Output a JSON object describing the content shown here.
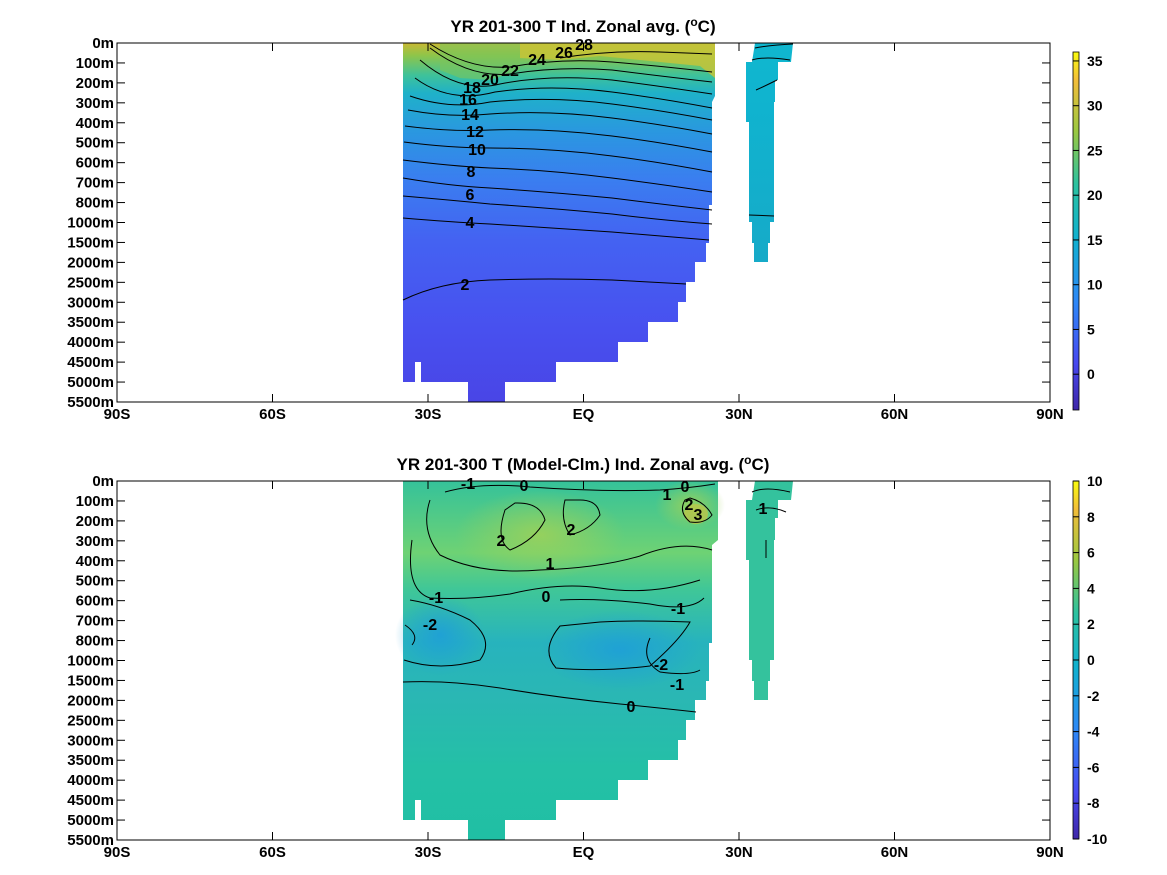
{
  "chart_data": [
    {
      "type": "heatmap",
      "title": "YR 201-300 T Ind. Zonal avg. (°C)",
      "title_main": "YR 201-300 T Ind. Zonal avg. (",
      "title_unit_sup": "o",
      "title_unit_tail": "C)",
      "x_ticks": [
        "90S",
        "60S",
        "30S",
        "EQ",
        "30N",
        "60N",
        "90N"
      ],
      "x_values": [
        -90,
        -60,
        -30,
        0,
        30,
        60,
        90
      ],
      "xlim": [
        -90,
        90
      ],
      "y_ticks": [
        "0m",
        "100m",
        "200m",
        "300m",
        "400m",
        "500m",
        "600m",
        "700m",
        "800m",
        "1000m",
        "1500m",
        "2000m",
        "2500m",
        "3000m",
        "3500m",
        "4000m",
        "4500m",
        "5000m",
        "5500m"
      ],
      "colorbar": {
        "min": -4,
        "max": 36,
        "ticks": [
          35,
          30,
          25,
          20,
          15,
          10,
          5,
          0
        ]
      },
      "contour_labels": [
        "28",
        "26",
        "24",
        "22",
        "20",
        "18",
        "16",
        "14",
        "12",
        "10",
        "8",
        "6",
        "4",
        "2"
      ],
      "contour_values": [
        28,
        26,
        24,
        22,
        20,
        18,
        16,
        14,
        12,
        10,
        8,
        6,
        4,
        2
      ],
      "depth_profile": [
        {
          "depth": "0m",
          "value": 27
        },
        {
          "depth": "100m",
          "value": 23
        },
        {
          "depth": "200m",
          "value": 18
        },
        {
          "depth": "300m",
          "value": 15
        },
        {
          "depth": "400m",
          "value": 13
        },
        {
          "depth": "500m",
          "value": 11
        },
        {
          "depth": "600m",
          "value": 9
        },
        {
          "depth": "700m",
          "value": 7.5
        },
        {
          "depth": "800m",
          "value": 6
        },
        {
          "depth": "1000m",
          "value": 4.5
        },
        {
          "depth": "1500m",
          "value": 3.5
        },
        {
          "depth": "2000m",
          "value": 2.8
        },
        {
          "depth": "2500m",
          "value": 2
        },
        {
          "depth": "3000m",
          "value": 1.6
        },
        {
          "depth": "3500m",
          "value": 1.3
        },
        {
          "depth": "4000m",
          "value": 1.1
        },
        {
          "depth": "4500m",
          "value": 0.9
        },
        {
          "depth": "5000m",
          "value": 0.8
        },
        {
          "depth": "5500m",
          "value": 0.7
        }
      ]
    },
    {
      "type": "heatmap",
      "title": "YR 201-300 T (Model-Clm.) Ind. Zonal avg. (°C)",
      "title_main": "YR 201-300 T (Model-Clm.) Ind. Zonal avg. (",
      "title_unit_sup": "o",
      "title_unit_tail": "C)",
      "x_ticks": [
        "90S",
        "60S",
        "30S",
        "EQ",
        "30N",
        "60N",
        "90N"
      ],
      "x_values": [
        -90,
        -60,
        -30,
        0,
        30,
        60,
        90
      ],
      "xlim": [
        -90,
        90
      ],
      "y_ticks": [
        "0m",
        "100m",
        "200m",
        "300m",
        "400m",
        "500m",
        "600m",
        "700m",
        "800m",
        "1000m",
        "1500m",
        "2000m",
        "2500m",
        "3000m",
        "3500m",
        "4000m",
        "4500m",
        "5000m",
        "5500m"
      ],
      "colorbar": {
        "min": -10,
        "max": 10,
        "ticks": [
          10,
          8,
          6,
          4,
          2,
          0,
          -2,
          -4,
          -6,
          -8,
          -10
        ]
      },
      "contour_labels": [
        "-1",
        "0",
        "1",
        "0",
        "2",
        "2",
        "3",
        "2",
        "1",
        "1",
        "0",
        "-1",
        "-2",
        "-1",
        "-2",
        "-1",
        "0"
      ],
      "contour_values": [
        -2,
        -1,
        0,
        1,
        2,
        3
      ]
    }
  ]
}
